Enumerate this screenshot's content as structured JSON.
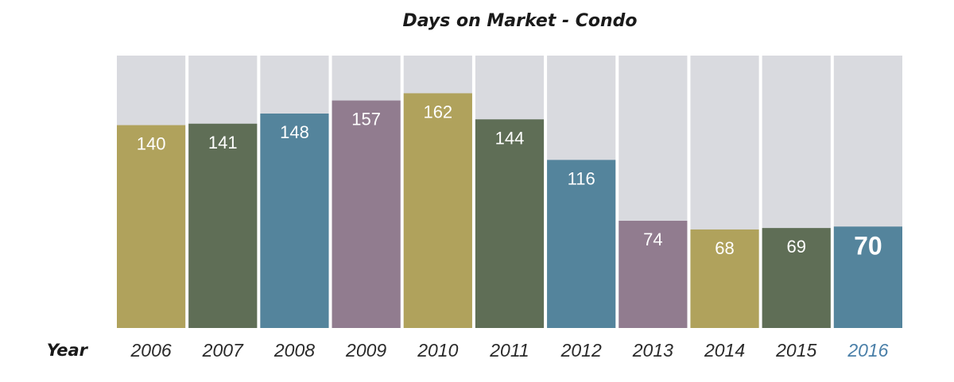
{
  "chart_data": {
    "type": "bar",
    "title": "Days on Market - Condo",
    "xlabel": "Year",
    "ylabel": "",
    "categories": [
      "2006",
      "2007",
      "2008",
      "2009",
      "2010",
      "2011",
      "2012",
      "2013",
      "2014",
      "2015",
      "2016"
    ],
    "values": [
      140,
      141,
      148,
      157,
      162,
      144,
      116,
      74,
      68,
      69,
      70
    ],
    "ylim": [
      0,
      188
    ],
    "grid": false,
    "colors": [
      "#b0a25c",
      "#5f6e56",
      "#54849c",
      "#917c8f",
      "#b0a25c",
      "#5f6e56",
      "#54849c",
      "#917c8f",
      "#b0a25c",
      "#5f6e56",
      "#54849c"
    ],
    "background_color": "#d9dadf",
    "highlight_color": "#4a7fa8",
    "highlight_category": "2016"
  }
}
